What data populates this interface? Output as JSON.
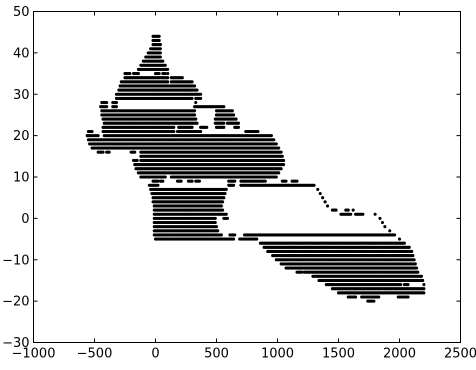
{
  "chart_data": {
    "type": "scatter",
    "title": "",
    "xlabel": "",
    "ylabel": "",
    "xlim": [
      -1000,
      2500
    ],
    "ylim": [
      -30,
      50
    ],
    "grid": false,
    "legend": "none",
    "marker_color": "#000000",
    "x_ticks": [
      "−1000",
      "−500",
      "0",
      "500",
      "1000",
      "1500",
      "2000",
      "2500"
    ],
    "x_tick_values": [
      -1000,
      -500,
      0,
      500,
      1000,
      1500,
      2000,
      2500
    ],
    "y_ticks": [
      "−30",
      "−20",
      "−10",
      "0",
      "10",
      "20",
      "30",
      "40",
      "50"
    ],
    "y_tick_values": [
      -30,
      -20,
      -10,
      0,
      10,
      20,
      30,
      40,
      50
    ],
    "series": [
      {
        "point_rows": [
          {
            "y": 44,
            "x": [
              -20,
              30
            ]
          },
          {
            "y": 43,
            "x": [
              -20,
              30
            ]
          },
          {
            "y": 42,
            "x": [
              -20,
              40
            ]
          },
          {
            "y": 41,
            "x": [
              -40,
              40
            ]
          },
          {
            "y": 40,
            "x": [
              -60,
              40
            ]
          },
          {
            "y": 39,
            "x": [
              -80,
              40
            ]
          },
          {
            "y": 38,
            "x": [
              -100,
              60
            ]
          },
          {
            "y": 37,
            "x": [
              -120,
              80
            ]
          },
          {
            "y": 36,
            "x": [
              -140,
              100
            ]
          },
          {
            "y": 35,
            "x": [
              -250,
              -210,
              -180,
              -140,
              0,
              30,
              60,
              80,
              100
            ]
          },
          {
            "y": 34,
            "x": [
              -250,
              100,
              130,
              220
            ]
          },
          {
            "y": 33,
            "x": [
              -280,
              100,
              130,
              300
            ]
          },
          {
            "y": 32,
            "x": [
              -290,
              320
            ]
          },
          {
            "y": 31,
            "x": [
              -300,
              340
            ]
          },
          {
            "y": 30,
            "x": [
              -320,
              370
            ]
          },
          {
            "y": 29,
            "x": [
              -320,
              300,
              330,
              370
            ]
          },
          {
            "y": 28,
            "x": [
              -440,
              -400,
              -350,
              -320,
              330
            ]
          },
          {
            "y": 27,
            "x": [
              -450,
              -400,
              -350,
              -320,
              320,
              550,
              560
            ]
          },
          {
            "y": 26,
            "x": [
              -440,
              320,
              500,
              630
            ]
          },
          {
            "y": 25,
            "x": [
              -440,
              320,
              500,
              640
            ]
          },
          {
            "y": 24,
            "x": [
              -430,
              330,
              490,
              660
            ]
          },
          {
            "y": 23,
            "x": [
              -420,
              340,
              490,
              560,
              590,
              680
            ]
          },
          {
            "y": 22,
            "x": [
              -430,
              150,
              190,
              300,
              370,
              420,
              500,
              560,
              650,
              680
            ]
          },
          {
            "y": 21,
            "x": [
              -550,
              -520,
              -430,
              150,
              180,
              370,
              740,
              840
            ]
          },
          {
            "y": 20,
            "x": [
              -560,
              -470,
              -420,
              950
            ]
          },
          {
            "y": 19,
            "x": [
              -550,
              970
            ]
          },
          {
            "y": 18,
            "x": [
              -540,
              990
            ]
          },
          {
            "y": 17,
            "x": [
              -520,
              1010
            ]
          },
          {
            "y": 16,
            "x": [
              -470,
              -430,
              -400,
              -380,
              -200,
              -170,
              -120,
              1030
            ]
          },
          {
            "y": 15,
            "x": [
              -120,
              1040
            ]
          },
          {
            "y": 14,
            "x": [
              -180,
              -150,
              -120,
              1050
            ]
          },
          {
            "y": 13,
            "x": [
              -170,
              1050
            ]
          },
          {
            "y": 12,
            "x": [
              -160,
              1030
            ]
          },
          {
            "y": 11,
            "x": [
              -140,
              1010
            ]
          },
          {
            "y": 10,
            "x": [
              -120,
              80,
              130,
              990
            ]
          },
          {
            "y": 9,
            "x": [
              -20,
              20,
              40,
              60,
              180,
              210,
              270,
              300,
              330,
              360,
              600,
              650,
              700,
              900,
              1040,
              1070,
              1120,
              1160
            ]
          },
          {
            "y": 8,
            "x": [
              -50,
              20,
              600,
              640,
              700,
              1300
            ]
          },
          {
            "y": 7,
            "x": [
              -40,
              580,
              1330
            ]
          },
          {
            "y": 6,
            "x": [
              -30,
              570,
              1350
            ]
          },
          {
            "y": 5,
            "x": [
              -20,
              560,
              1370
            ]
          },
          {
            "y": 4,
            "x": [
              -20,
              550,
              1390
            ]
          },
          {
            "y": 3,
            "x": [
              -10,
              540,
              1410
            ]
          },
          {
            "y": 2,
            "x": [
              -10,
              550,
              1450,
              1480,
              1560,
              1580,
              1620
            ]
          },
          {
            "y": 1,
            "x": [
              -10,
              580,
              1520,
              1600,
              1640,
              1700,
              1800
            ]
          },
          {
            "y": 0,
            "x": [
              -10,
              490,
              560,
              590,
              1840
            ]
          },
          {
            "y": -1,
            "x": [
              -10,
              490,
              1860
            ]
          },
          {
            "y": -2,
            "x": [
              -10,
              500,
              1880
            ]
          },
          {
            "y": -3,
            "x": [
              -10,
              510,
              1920
            ]
          },
          {
            "y": -4,
            "x": [
              -10,
              540,
              610,
              650,
              730,
              1960
            ]
          },
          {
            "y": -5,
            "x": [
              0,
              640,
              690,
              830,
              2000
            ]
          },
          {
            "y": -6,
            "x": [
              860,
              2040
            ]
          },
          {
            "y": -7,
            "x": [
              890,
              2080
            ]
          },
          {
            "y": -8,
            "x": [
              920,
              2100
            ]
          },
          {
            "y": -9,
            "x": [
              960,
              2110
            ]
          },
          {
            "y": -10,
            "x": [
              990,
              2120
            ]
          },
          {
            "y": -11,
            "x": [
              1030,
              2130
            ]
          },
          {
            "y": -12,
            "x": [
              1070,
              2140
            ]
          },
          {
            "y": -13,
            "x": [
              1160,
              1200,
              1220,
              1240,
              1250,
              2150
            ]
          },
          {
            "y": -14,
            "x": [
              1290,
              2180
            ]
          },
          {
            "y": -15,
            "x": [
              1340,
              2190
            ]
          },
          {
            "y": -16,
            "x": [
              1400,
              2010,
              2040,
              2070,
              2200
            ]
          },
          {
            "y": -17,
            "x": [
              1450,
              2200
            ]
          },
          {
            "y": -18,
            "x": [
              1500,
              2200
            ]
          },
          {
            "y": -19,
            "x": [
              1580,
              1640,
              1690,
              1830,
              1990,
              2070
            ]
          },
          {
            "y": -20,
            "x": [
              1740,
              1790
            ]
          }
        ]
      }
    ]
  }
}
